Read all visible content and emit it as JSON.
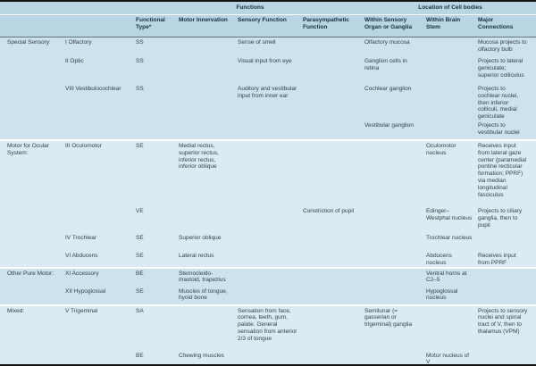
{
  "colors": {
    "header_band": "#b9d5e3",
    "section_shade_dark": "#cde2ec",
    "section_shade_light": "#dcebf3",
    "border": "#141414"
  },
  "table": {
    "group_headers": {
      "functions": "Functions",
      "location": "Location of Cell bodies"
    },
    "columns": {
      "functional_type": "Functional Type*",
      "motor": "Motor Innervation",
      "sensory": "Sensory Function",
      "parasympathetic": "Parasympathetic Function",
      "organ": "Within Sensory Organ or Ganglia",
      "brainstem": "Within Brain Stem",
      "connections": "Major Connections"
    },
    "sections": [
      {
        "label": "Special Sensory:",
        "rows": [
          {
            "nerve": "I Olfactory",
            "type": "SS",
            "motor": "",
            "sensory": "Sense of smell",
            "para": "",
            "organ": "Olfactory mucosa",
            "brainstem": "",
            "connections": "Mucosa projects to olfactory bulb"
          },
          {
            "nerve": "II Optic",
            "type": "SS",
            "motor": "",
            "sensory": "Visual input from eye",
            "para": "",
            "organ": "Ganglion cells in retina",
            "brainstem": "",
            "connections": "Projects to lateral geniculate; superior colliculus"
          },
          {
            "nerve": "VIII Vestibulocochlear",
            "type": "SS",
            "motor": "",
            "sensory": "Auditory and vestibular input from inner ear",
            "para": "",
            "organ": "Cochlear ganglion",
            "brainstem": "",
            "connections": "Projects to cochlear nuclei, then inferior colliculi, medial geniculate"
          },
          {
            "nerve": "",
            "type": "",
            "motor": "",
            "sensory": "",
            "para": "",
            "organ": "Vestibular ganglion",
            "brainstem": "",
            "connections": "Projects to vestibular nuclei"
          }
        ]
      },
      {
        "label": "Motor for Ocular System:",
        "rows": [
          {
            "nerve": "III Oculomotor",
            "type": "SE",
            "motor": "Medial rectus, superior rectus, inferior rectus, inferior oblique",
            "sensory": "",
            "para": "",
            "organ": "",
            "brainstem": "Oculomotor nucleus",
            "connections": "Receives input from lateral gaze center (paramedial pontine recticular formation; PPRF) via median longitudinal fasciculus"
          },
          {
            "nerve": "",
            "type": "VE",
            "motor": "",
            "sensory": "",
            "para": "Constriction of pupil",
            "organ": "",
            "brainstem": "Edinger–Westphal nucleus",
            "connections": "Projects to ciliary ganglia, then to pupil"
          },
          {
            "nerve": "IV Trochlear",
            "type": "SE",
            "motor": "Superior oblique",
            "sensory": "",
            "para": "",
            "organ": "",
            "brainstem": "Trochlear nucleus",
            "connections": ""
          },
          {
            "nerve": "VI Abducens",
            "type": "SE",
            "motor": "Lateral rectus",
            "sensory": "",
            "para": "",
            "organ": "",
            "brainstem": "Abducens nucleus",
            "connections": "Receives input from PPRF"
          }
        ]
      },
      {
        "label": "Other Pure Motor:",
        "rows": [
          {
            "nerve": "XI Accessory",
            "type": "BE",
            "motor": "Sternocleido-mastoid, trapezius",
            "sensory": "",
            "para": "",
            "organ": "",
            "brainstem": "Ventral horns at C2–5",
            "connections": ""
          },
          {
            "nerve": "XII Hypoglossal",
            "type": "SE",
            "motor": "Muscles of tongue, hyoid bone",
            "sensory": "",
            "para": "",
            "organ": "",
            "brainstem": "Hypoglossal nucleus",
            "connections": ""
          }
        ]
      },
      {
        "label": "Mixed:",
        "rows": [
          {
            "nerve": "V Trigeminal",
            "type": "SA",
            "motor": "",
            "sensory": "Sensation from face, cornea, teeth, gum, palate. General sensation from anterior 2/3 of tongue",
            "para": "",
            "organ": "Semilunar (= gasserian or trigeminal) ganglia",
            "brainstem": "",
            "connections": "Projects to sensory nuclei and spinal tract of V, then to thalamus (VPM)"
          },
          {
            "nerve": "",
            "type": "BE",
            "motor": "Chewing muscles",
            "sensory": "",
            "para": "",
            "organ": "",
            "brainstem": "Motor nucleus of V",
            "connections": ""
          }
        ]
      }
    ]
  }
}
